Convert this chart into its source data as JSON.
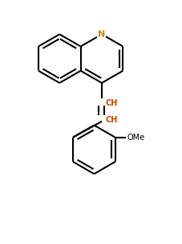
{
  "background_color": "#ffffff",
  "line_color": "#000000",
  "N_color": "#cc8800",
  "N_outline_color": "#0000aa",
  "text_color": "#cc4400",
  "OMe_color": "#000000",
  "line_width": 1.5,
  "figsize": [
    2.27,
    3.05
  ],
  "dpi": 100,
  "xlim": [
    -0.6,
    0.65
  ],
  "ylim": [
    -1.15,
    0.72
  ]
}
